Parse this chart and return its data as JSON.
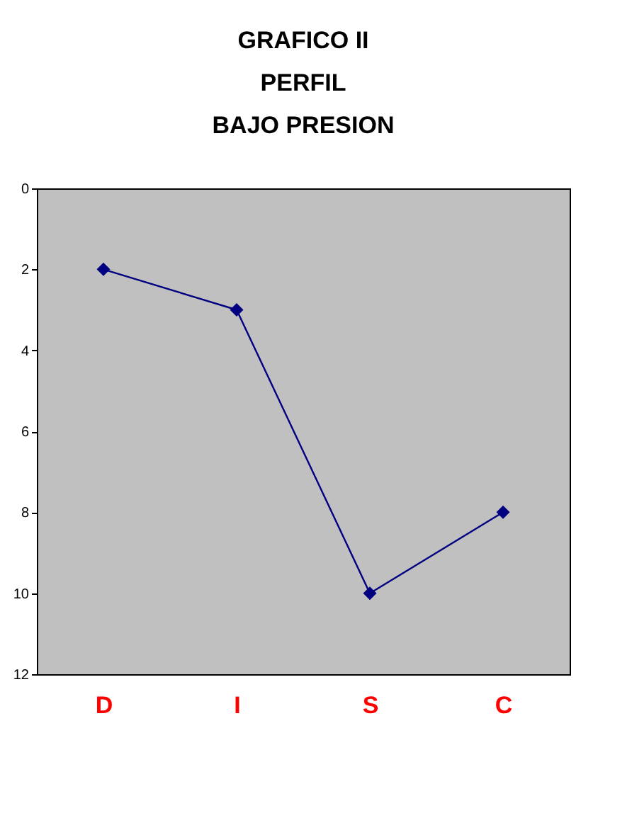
{
  "chart_data": {
    "type": "line",
    "title": "GRAFICO II\nPERFIL\nBAJO PRESION",
    "categories": [
      "D",
      "I",
      "S",
      "C"
    ],
    "series": [
      {
        "color": "#000080",
        "values": [
          2,
          3,
          10,
          8
        ]
      }
    ],
    "ylim": [
      12,
      0
    ],
    "yticks": [
      0,
      2,
      4,
      6,
      8,
      10,
      12
    ],
    "grid": false,
    "marker": "diamond",
    "line_style": "solid",
    "legend": false
  }
}
